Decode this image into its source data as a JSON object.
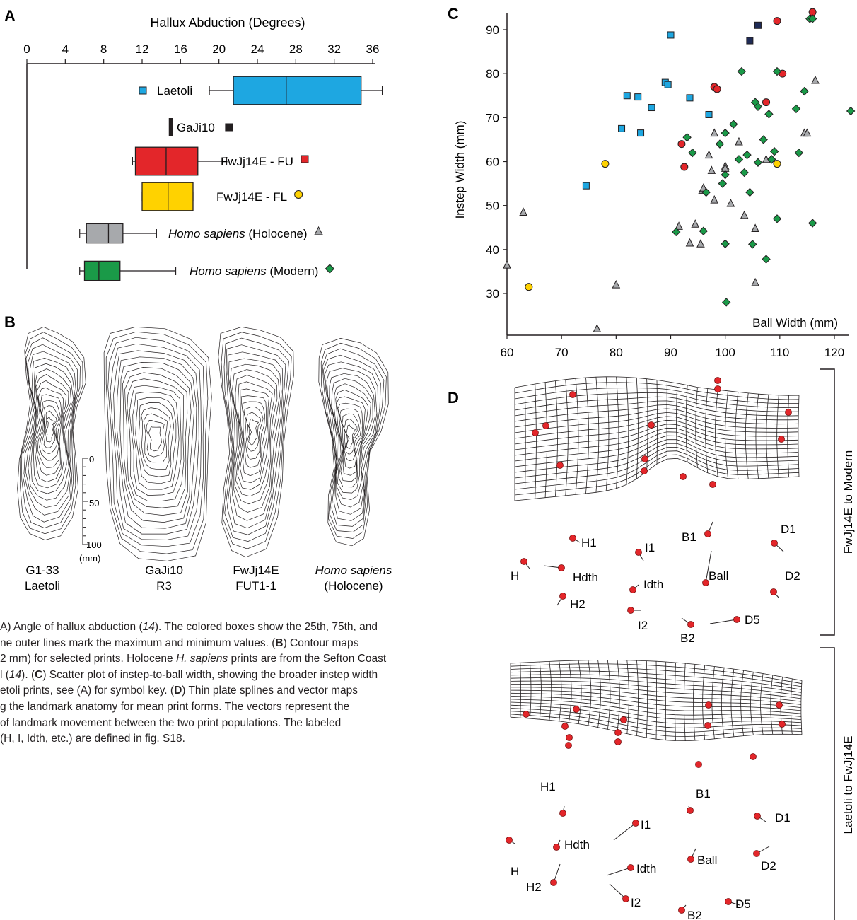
{
  "panels": {
    "A": {
      "letter": "A",
      "title": "Hallux Abduction (Degrees)",
      "ticks": [
        0,
        4,
        8,
        12,
        16,
        20,
        24,
        28,
        32,
        36
      ],
      "axis_max": 36,
      "rows": [
        {
          "label": "Laetoli",
          "italic_part": "",
          "marker": "square",
          "color": "#1ea7e1",
          "min": 19,
          "q1": 21.5,
          "median": 27,
          "q3": 34.8,
          "max": 37
        },
        {
          "label": "GaJi10",
          "italic_part": "",
          "marker": "square",
          "color": "#231f20",
          "value": 15
        },
        {
          "label": "FwJj14E - FU",
          "italic_part": "",
          "marker": "square",
          "color": "#e3262a",
          "min": 11,
          "q1": 11.3,
          "median": 14.5,
          "q3": 17.8,
          "max": 20.8
        },
        {
          "label": "FwJj14E - FL",
          "italic_part": "",
          "marker": "circle",
          "color": "#ffd200",
          "min": 12,
          "q1": 12,
          "median": 14.7,
          "q3": 17.3,
          "max": 17.3
        },
        {
          "label": " (Holocene)",
          "italic_part": "Homo sapiens",
          "marker": "triangle",
          "color": "#a7a9ac",
          "min": 5.5,
          "q1": 6.2,
          "median": 8.5,
          "q3": 10,
          "max": 13.5
        },
        {
          "label": " (Modern)",
          "italic_part": "Homo sapiens",
          "marker": "diamond",
          "color": "#1a9a48",
          "min": 5.5,
          "q1": 6,
          "median": 7.5,
          "q3": 9.7,
          "max": 15.5
        }
      ]
    },
    "B": {
      "letter": "B",
      "scale_ticks": [
        "0",
        "50",
        "100"
      ],
      "scale_unit": "(mm)",
      "prints": [
        {
          "line1": "G1-33",
          "line2": "Laetoli",
          "italic": false
        },
        {
          "line1": "GaJi10",
          "line2": "R3",
          "italic": false
        },
        {
          "line1": "FwJj14E",
          "line2": "FUT1-1",
          "italic": false
        },
        {
          "line1": "Homo sapiens",
          "line2": "(Holocene)",
          "italic": true
        }
      ]
    },
    "C": {
      "letter": "C",
      "xlabel": "Ball Width (mm)",
      "ylabel": "Instep Width (mm)"
    },
    "D": {
      "letter": "D",
      "side_label_top": "FwJj14E to Modern",
      "side_label_bottom": "Laetoli to FwJj14E",
      "landmarks_top": [
        "H1",
        "I1",
        "B1",
        "D1",
        "H",
        "Hdth",
        "Ball",
        "D2",
        "Idth",
        "H2",
        "I2",
        "D5",
        "B2"
      ],
      "landmarks_bottom": [
        "H1",
        "B1",
        "D1",
        "I1",
        "Hdth",
        "H",
        "Ball",
        "D2",
        "Idth",
        "H2",
        "I2",
        "D5",
        "B2"
      ]
    }
  },
  "chart_data": [
    {
      "type": "box",
      "title": "Hallux Abduction (Degrees)",
      "xlim": [
        0,
        36
      ],
      "categories": [
        "Laetoli",
        "GaJi10",
        "FwJj14E - FU",
        "FwJj14E - FL",
        "Homo sapiens (Holocene)",
        "Homo sapiens (Modern)"
      ]
    },
    {
      "type": "scatter",
      "xlabel": "Ball Width (mm)",
      "ylabel": "Instep Width (mm)",
      "xlim": [
        60,
        120
      ],
      "ylim": [
        20,
        95
      ],
      "xticks": [
        60,
        70,
        80,
        90,
        100,
        110,
        120
      ],
      "yticks": [
        30,
        40,
        50,
        60,
        70,
        80,
        90
      ],
      "series": [
        {
          "name": "Laetoli",
          "marker": "square",
          "color": "#1ea7e1",
          "points": [
            [
              74.5,
              54.5
            ],
            [
              81,
              67.5
            ],
            [
              82,
              75
            ],
            [
              84,
              74.7
            ],
            [
              84.5,
              66.5
            ],
            [
              86.5,
              72.3
            ],
            [
              89,
              78
            ],
            [
              89.5,
              77.5
            ],
            [
              90,
              88.8
            ],
            [
              93.5,
              74.5
            ],
            [
              97,
              70.7
            ]
          ]
        },
        {
          "name": "GaJi10",
          "marker": "square",
          "color": "#1f2b56",
          "points": [
            [
              104.5,
              87.5
            ],
            [
              106,
              91
            ]
          ]
        },
        {
          "name": "FwJj14E - FU",
          "marker": "circle",
          "color": "#e3262a",
          "points": [
            [
              92,
              64
            ],
            [
              92.5,
              58.8
            ],
            [
              98,
              77
            ],
            [
              98.5,
              76.5
            ],
            [
              107.5,
              73.5
            ],
            [
              109.5,
              92
            ],
            [
              110.5,
              80
            ],
            [
              116,
              94
            ]
          ]
        },
        {
          "name": "FwJj14E - FL",
          "marker": "circle",
          "color": "#ffd200",
          "points": [
            [
              64,
              31.5
            ],
            [
              78,
              59.5
            ],
            [
              109.5,
              59.5
            ]
          ]
        },
        {
          "name": "Homo sapiens (Holocene)",
          "marker": "triangle",
          "color": "#a7a9ac",
          "points": [
            [
              60,
              36.5
            ],
            [
              63,
              48.5
            ],
            [
              76.5,
              22
            ],
            [
              80,
              32
            ],
            [
              91.5,
              45.3
            ],
            [
              93.5,
              41.5
            ],
            [
              94.5,
              45.8
            ],
            [
              95.5,
              41.3
            ],
            [
              95.8,
              53.5
            ],
            [
              96,
              54
            ],
            [
              97,
              61.5
            ],
            [
              97.5,
              58
            ],
            [
              98,
              66.5
            ],
            [
              98,
              51.3
            ],
            [
              100,
              59
            ],
            [
              100,
              58.5
            ],
            [
              101,
              50.5
            ],
            [
              102.5,
              64.5
            ],
            [
              103.5,
              47.8
            ],
            [
              105.5,
              44.8
            ],
            [
              105.5,
              32.5
            ],
            [
              107.5,
              60.5
            ],
            [
              114.5,
              66.5
            ],
            [
              115,
              66.5
            ],
            [
              116.5,
              78.5
            ]
          ]
        },
        {
          "name": "Homo sapiens (Modern)",
          "marker": "diamond",
          "color": "#1a9a48",
          "points": [
            [
              91,
              44
            ],
            [
              93,
              65.5
            ],
            [
              94,
              62
            ],
            [
              96,
              44.2
            ],
            [
              96.5,
              53
            ],
            [
              99,
              64
            ],
            [
              99.5,
              55
            ],
            [
              100,
              66.5
            ],
            [
              100,
              57
            ],
            [
              100,
              41.3
            ],
            [
              100.2,
              28
            ],
            [
              101.5,
              68.5
            ],
            [
              102.5,
              60.5
            ],
            [
              103,
              80.5
            ],
            [
              103.5,
              57.5
            ],
            [
              104,
              61.5
            ],
            [
              104.5,
              53
            ],
            [
              105,
              41.2
            ],
            [
              105.5,
              73.5
            ],
            [
              106,
              72.5
            ],
            [
              106,
              59.8
            ],
            [
              107,
              65
            ],
            [
              107.5,
              37.8
            ],
            [
              108,
              70.8
            ],
            [
              108.5,
              60.5
            ],
            [
              109,
              62.3
            ],
            [
              109.5,
              47
            ],
            [
              109.5,
              80.5
            ],
            [
              113,
              72
            ],
            [
              113.5,
              62
            ],
            [
              114.5,
              76
            ],
            [
              115.5,
              92.5
            ],
            [
              116,
              92.5
            ],
            [
              116,
              46
            ],
            [
              123,
              71.5
            ]
          ]
        }
      ]
    }
  ],
  "caption": {
    "lines": [
      "A) Angle of hallux abduction (|14|). The colored boxes show the 25th, 75th, and",
      "ne outer lines mark the maximum and minimum values. (|B|) Contour maps",
      "2 mm) for selected prints. Holocene |H. sapiens| prints are from the Sefton Coast",
      "l (|14|). (|C|) Scatter plot of instep-to-ball width, showing the broader instep width",
      "etoli prints, see (A) for symbol key. (|D|) Thin plate splines and vector maps",
      "g the landmark anatomy for mean print forms. The vectors represent the",
      "of landmark movement between the two print populations. The labeled",
      " (H, I, Idth, etc.) are defined in fig. S18."
    ]
  }
}
